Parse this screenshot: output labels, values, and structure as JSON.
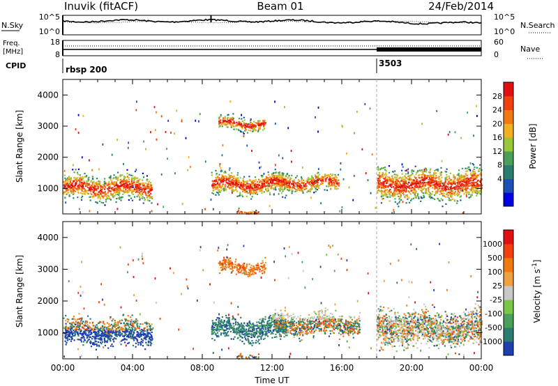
{
  "header": {
    "station": "Inuvik (fitACF)",
    "beam": "Beam 01",
    "date": "24/Feb/2014"
  },
  "noise_panel": {
    "left_label": "N.Sky",
    "left_ticks": [
      "10^5",
      "10^0"
    ],
    "right_label": "N.Search",
    "right_ticks": [
      "10^5",
      "10^0"
    ]
  },
  "freq_panel": {
    "left_label_line1": "Freq.",
    "left_label_line2": "[MHz]",
    "left_ticks": [
      "18",
      "8"
    ],
    "right_label": "Nave",
    "right_ticks": [
      "60",
      "0"
    ]
  },
  "cpid_panel": {
    "label": "CPID",
    "modes": [
      {
        "name": "rbsp 200",
        "start_hour": 0
      },
      {
        "name": "3503",
        "start_hour": 18
      }
    ]
  },
  "chart_data": [
    {
      "type": "heatmap",
      "title": "",
      "xlabel": "Time UT",
      "ylabel": "Slant Range [km]",
      "x_ticks": [
        "00:00",
        "04:00",
        "08:00",
        "12:00",
        "16:00",
        "20:00",
        "00:00"
      ],
      "xlim_hours": [
        0,
        24
      ],
      "y_ticks": [
        1000,
        2000,
        3000,
        4000
      ],
      "ylim_km": [
        180,
        4500
      ],
      "colorbar": {
        "label": "Power [dB]",
        "ticks": [
          "28",
          "24",
          "20",
          "16",
          "12",
          "8",
          "4"
        ],
        "colors": [
          "#0000e0",
          "#1e4fb4",
          "#2a7d6e",
          "#4aa05a",
          "#98c83a",
          "#f0b020",
          "#f07a10",
          "#f04010",
          "#e01010"
        ]
      },
      "scatter_regions": [
        {
          "t0": 0.0,
          "t1": 5.1,
          "r_lo": 620,
          "r_hi": 1750,
          "core": 1050
        },
        {
          "t0": 8.5,
          "t1": 12.8,
          "r_lo": 700,
          "r_hi": 1700,
          "core": 1150
        },
        {
          "t0": 12.0,
          "t1": 15.8,
          "r_lo": 820,
          "r_hi": 1600,
          "core": 1200
        },
        {
          "t0": 18.0,
          "t1": 24.0,
          "r_lo": 580,
          "r_hi": 2000,
          "core": 1150
        },
        {
          "t0": 8.9,
          "t1": 11.6,
          "r_lo": 2800,
          "r_hi": 3400,
          "core": 3100
        },
        {
          "t0": 10.0,
          "t1": 11.2,
          "r_lo": 200,
          "r_hi": 450,
          "core": 300
        }
      ]
    },
    {
      "type": "heatmap",
      "title": "",
      "xlabel": "Time UT",
      "ylabel": "Slant Range [km]",
      "x_ticks": [
        "00:00",
        "04:00",
        "08:00",
        "12:00",
        "16:00",
        "20:00",
        "00:00"
      ],
      "xlim_hours": [
        0,
        24
      ],
      "y_ticks": [
        1000,
        2000,
        3000,
        4000
      ],
      "ylim_km": [
        180,
        4500
      ],
      "colorbar": {
        "label": "Velocity [m s^-1]",
        "ticks": [
          "1000",
          "500",
          "100",
          "25",
          "-25",
          "-100",
          "-500",
          "-1000"
        ],
        "colors": [
          "#1e3fb0",
          "#2a7d6e",
          "#4aa05a",
          "#7ac84a",
          "#c8c8c8",
          "#f0a040",
          "#f07a10",
          "#f04010",
          "#e01010"
        ]
      },
      "scatter_regions": [
        {
          "t0": 0.0,
          "t1": 5.1,
          "r_lo": 620,
          "r_hi": 1750,
          "core": 1050
        },
        {
          "t0": 8.5,
          "t1": 12.8,
          "r_lo": 700,
          "r_hi": 1700,
          "core": 1150
        },
        {
          "t0": 12.0,
          "t1": 17.0,
          "r_lo": 820,
          "r_hi": 1800,
          "core": 1300
        },
        {
          "t0": 18.0,
          "t1": 24.0,
          "r_lo": 580,
          "r_hi": 2200,
          "core": 1150
        },
        {
          "t0": 8.9,
          "t1": 11.6,
          "r_lo": 2800,
          "r_hi": 3400,
          "core": 3100
        },
        {
          "t0": 10.0,
          "t1": 11.2,
          "r_lo": 200,
          "r_hi": 450,
          "core": 300
        }
      ]
    }
  ]
}
